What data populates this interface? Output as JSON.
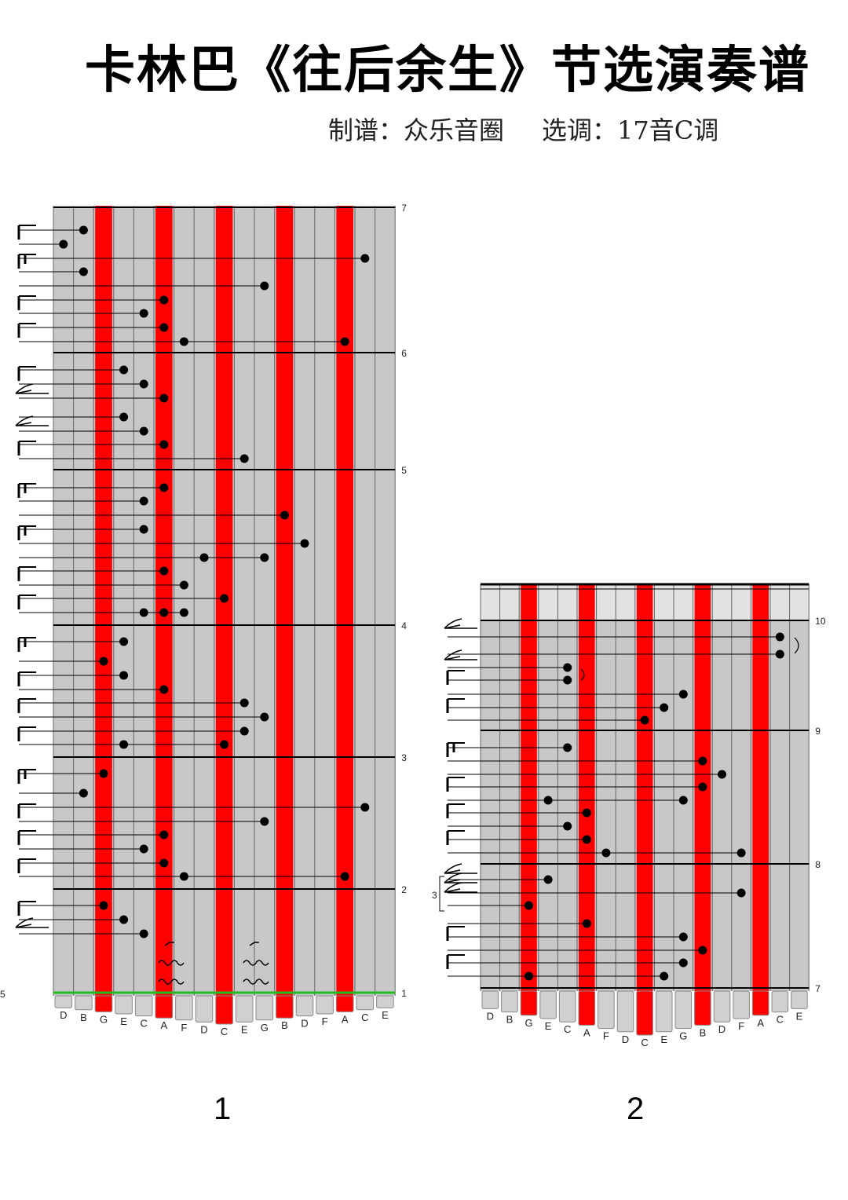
{
  "title": "卡林巴《往后余生》节选演奏谱",
  "credits": {
    "arranger": "制谱：众乐音圈",
    "key": "选调：17音C调"
  },
  "key_labels": [
    "D",
    "B",
    "G",
    "E",
    "C",
    "A",
    "F",
    "D",
    "C",
    "E",
    "G",
    "B",
    "D",
    "F",
    "A",
    "C",
    "E"
  ],
  "red_key_indices": [
    2,
    5,
    8,
    11,
    14
  ],
  "panels": [
    {
      "label": "1",
      "measure_numbers": [
        "7",
        "6",
        "5",
        "4",
        "3",
        "2",
        "1"
      ],
      "side_marker": "5"
    },
    {
      "label": "2",
      "measure_numbers": [
        "10",
        "9",
        "8",
        "7"
      ],
      "triplet_marker": "3"
    }
  ],
  "colors": {
    "key_gray": "#c8c8c8",
    "key_red": "#ff0000",
    "grid": "#000000",
    "start_line": "#22bb22"
  }
}
